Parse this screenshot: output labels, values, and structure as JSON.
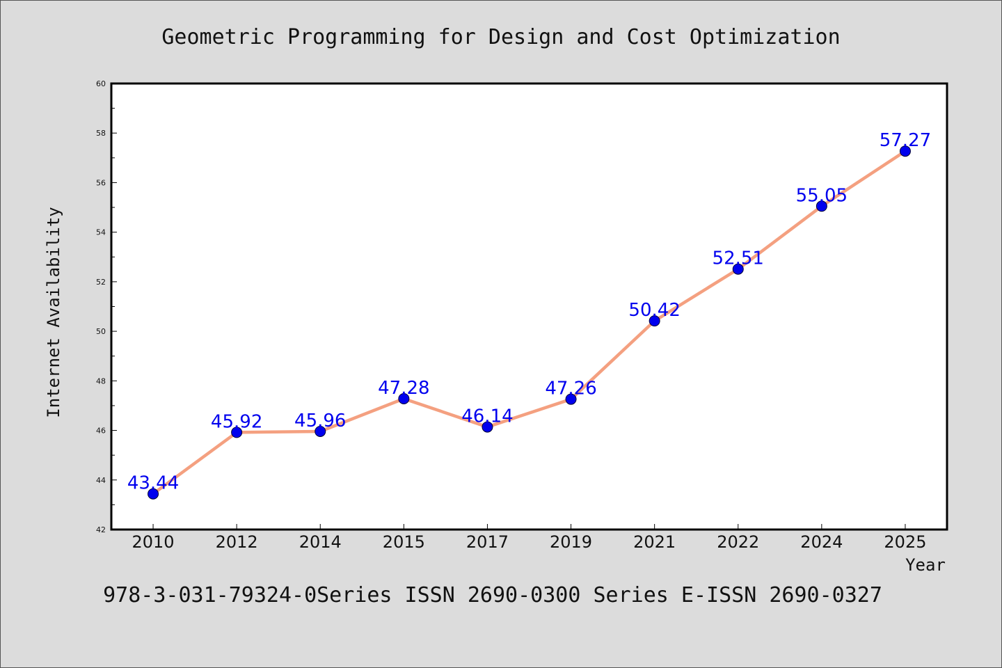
{
  "colors": {
    "background": "#dcdcdc",
    "plot_bg": "#ffffff",
    "line": "#f4a080",
    "marker": "#0000ee",
    "data_label": "#0000ee"
  },
  "footer": "978-3-031-79324-0Series ISSN 2690-0300 Series E-ISSN 2690-0327",
  "chart_data": {
    "type": "line",
    "title": "Geometric Programming for Design and Cost Optimization",
    "xlabel": "Year",
    "ylabel": "Internet Availability",
    "categories": [
      "2010",
      "2012",
      "2014",
      "2015",
      "2017",
      "2019",
      "2021",
      "2022",
      "2024",
      "2025"
    ],
    "values": [
      43.44,
      45.92,
      45.96,
      47.28,
      46.14,
      47.26,
      50.42,
      52.51,
      55.05,
      57.27
    ],
    "data_labels": [
      "43.44",
      "45.92",
      "45.96",
      "47.28",
      "46.14",
      "47.26",
      "50.42",
      "52.51",
      "55.05",
      "57.27"
    ],
    "ylim": [
      42,
      60
    ],
    "yticks": [
      "42",
      "44",
      "46",
      "48",
      "50",
      "52",
      "54",
      "56",
      "58",
      "60"
    ],
    "grid": false,
    "legend": false
  }
}
